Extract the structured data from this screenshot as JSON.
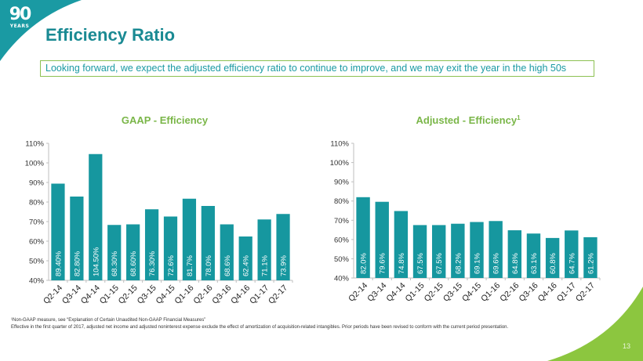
{
  "header": {
    "logo_number": "90",
    "logo_sub": "YEARS",
    "title": "Efficiency Ratio",
    "callout": "Looking forward, we expect the adjusted efficiency ratio to continue to improve, and we may exit the year in the high 50s"
  },
  "colors": {
    "bar": "#16979f",
    "title": "#1a8a93",
    "chart_title": "#7ab648",
    "callout_border": "#8cc152",
    "teal_corner": "#1a9aa3",
    "green_corner": "#8cc63f"
  },
  "chart_data": [
    {
      "type": "bar",
      "title": "GAAP - Efficiency",
      "title_superscript": "",
      "xlabel": "",
      "ylabel": "",
      "ylim": [
        40,
        110
      ],
      "yticks": [
        "40%",
        "50%",
        "60%",
        "70%",
        "80%",
        "90%",
        "100%",
        "110%"
      ],
      "categories": [
        "Q2-14",
        "Q3-14",
        "Q4-14",
        "Q1-15",
        "Q2-15",
        "Q3-15",
        "Q4-15",
        "Q1-16",
        "Q2-16",
        "Q3-16",
        "Q4-16",
        "Q1-17",
        "Q2-17"
      ],
      "values": [
        89.4,
        82.8,
        104.5,
        68.3,
        68.6,
        76.3,
        72.6,
        81.7,
        78.0,
        68.6,
        62.4,
        71.1,
        73.9
      ],
      "data_labels": [
        "89.40%",
        "82.80%",
        "104.50%",
        "68.30%",
        "68.60%",
        "76.30%",
        "72.6%",
        "81.7%",
        "78.0%",
        "68.6%",
        "62.4%",
        "71.1%",
        "73.9%"
      ],
      "grid": false,
      "legend": "none"
    },
    {
      "type": "bar",
      "title": "Adjusted - Efficiency",
      "title_superscript": "1",
      "xlabel": "",
      "ylabel": "",
      "ylim": [
        40,
        110
      ],
      "yticks": [
        "40%",
        "50%",
        "60%",
        "70%",
        "80%",
        "90%",
        "100%",
        "110%"
      ],
      "categories": [
        "Q2-14",
        "Q3-14",
        "Q4-14",
        "Q1-15",
        "Q2-15",
        "Q3-15",
        "Q4-15",
        "Q1-16",
        "Q2-16",
        "Q3-16",
        "Q4-16",
        "Q1-17",
        "Q2-17"
      ],
      "values": [
        82.0,
        79.6,
        74.8,
        67.5,
        67.5,
        68.2,
        69.1,
        69.6,
        64.8,
        63.1,
        60.8,
        64.7,
        61.2
      ],
      "data_labels": [
        "82.0%",
        "79.6%",
        "74.8%",
        "67.5%",
        "67.5%",
        "68.2%",
        "69.1%",
        "69.6%",
        "64.8%",
        "63.1%",
        "60.8%",
        "64.7%",
        "61.2%"
      ],
      "grid": false,
      "legend": "none"
    }
  ],
  "footnotes": [
    "¹Non-GAAP measure, see “Explanation of Certain Unaudited Non-GAAP Financial Measures”",
    "Effective in the first quarter of 2017, adjusted net income and adjusted noninterest expense exclude the effect of amortization of acquisition-related intangibles.  Prior periods have been revised to conform with the current period presentation."
  ],
  "page_number": "13"
}
